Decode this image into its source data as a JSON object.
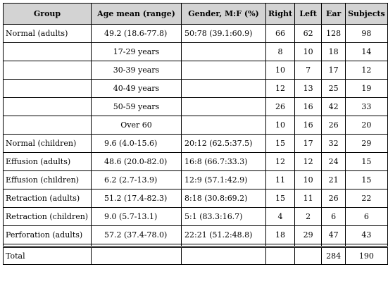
{
  "table": {
    "headers": [
      "Group",
      "Age mean (range)",
      "Gender, M:F (%)",
      "Right",
      "Left",
      "Ear",
      "Subjects"
    ],
    "rows": [
      {
        "group": "Normal (adults)",
        "age": "49.2 (18.6-77.8)",
        "gender": "50:78 (39.1:60.9)",
        "right": "66",
        "left": "62",
        "ear": "128",
        "subjects": "98",
        "age_centered": false
      },
      {
        "group": "",
        "age": "17-29 years",
        "gender": "",
        "right": "8",
        "left": "10",
        "ear": "18",
        "subjects": "14",
        "age_centered": true
      },
      {
        "group": "",
        "age": "30-39 years",
        "gender": "",
        "right": "10",
        "left": "7",
        "ear": "17",
        "subjects": "12",
        "age_centered": true
      },
      {
        "group": "",
        "age": "40-49 years",
        "gender": "",
        "right": "12",
        "left": "13",
        "ear": "25",
        "subjects": "19",
        "age_centered": true
      },
      {
        "group": "",
        "age": "50-59 years",
        "gender": "",
        "right": "26",
        "left": "16",
        "ear": "42",
        "subjects": "33",
        "age_centered": true
      },
      {
        "group": "",
        "age": "Over 60",
        "gender": "",
        "right": "10",
        "left": "16",
        "ear": "26",
        "subjects": "20",
        "age_centered": true
      },
      {
        "group": "Normal (children)",
        "age": "9.6 (4.0-15.6)",
        "gender": "20:12 (62.5:37.5)",
        "right": "15",
        "left": "17",
        "ear": "32",
        "subjects": "29",
        "age_centered": false
      },
      {
        "group": "Effusion (adults)",
        "age": "48.6 (20.0-82.0)",
        "gender": "16:8 (66.7:33.3)",
        "right": "12",
        "left": "12",
        "ear": "24",
        "subjects": "15",
        "age_centered": false
      },
      {
        "group": "Effusion (children)",
        "age": "6.2 (2.7-13.9)",
        "gender": "12:9 (57.1:42.9)",
        "right": "11",
        "left": "10",
        "ear": "21",
        "subjects": "15",
        "age_centered": false
      },
      {
        "group": "Retraction (adults)",
        "age": "51.2 (17.4-82.3)",
        "gender": "8:18 (30.8:69.2)",
        "right": "15",
        "left": "11",
        "ear": "26",
        "subjects": "22",
        "age_centered": false
      },
      {
        "group": "Retraction (children)",
        "age": "9.0 (5.7-13.1)",
        "gender": "5:1 (83.3:16.7)",
        "right": "4",
        "left": "2",
        "ear": "6",
        "subjects": "6",
        "age_centered": false
      },
      {
        "group": "Perforation (adults)",
        "age": "57.2 (37.4-78.0)",
        "gender": "22:21 (51.2:48.8)",
        "right": "18",
        "left": "29",
        "ear": "47",
        "subjects": "43",
        "age_centered": false
      }
    ],
    "total": {
      "group": "Total",
      "age": "",
      "gender": "",
      "right": "",
      "left": "",
      "ear": "284",
      "subjects": "190"
    }
  }
}
